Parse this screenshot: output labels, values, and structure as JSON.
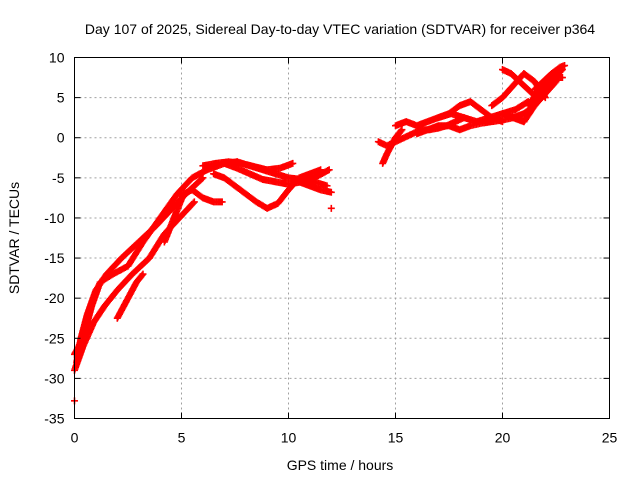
{
  "chart_data": {
    "type": "scatter",
    "title": "Day 107 of 2025, Sidereal Day-to-day VTEC variation (SDTVAR) for receiver p364",
    "xlabel": "GPS time / hours",
    "ylabel": "SDTVAR / TECUs",
    "xlim": [
      0,
      25
    ],
    "ylim": [
      -35,
      10
    ],
    "xticks": [
      "0",
      "5",
      "10",
      "15",
      "20",
      "25"
    ],
    "yticks": [
      "10",
      "5",
      "0",
      "-5",
      "-10",
      "-15",
      "-20",
      "-25",
      "-30",
      "-35"
    ],
    "grid": true,
    "marker": "+",
    "series_color": "#ff0000",
    "series": [
      {
        "x": [
          0.0,
          0.2,
          0.5,
          0.8,
          1.2,
          1.8,
          2.5,
          3.2,
          4.0,
          4.8,
          5.5,
          6.2,
          7.0,
          7.6
        ],
        "y": [
          -27,
          -26,
          -24,
          -21,
          -18,
          -17,
          -16,
          -13,
          -10,
          -7,
          -5,
          -4,
          -3.2,
          -3
        ]
      },
      {
        "x": [
          0.1,
          0.3,
          0.6,
          1.0,
          1.5,
          2.2,
          3.0,
          3.8,
          4.5,
          5.2,
          6.0
        ],
        "y": [
          -28,
          -25,
          -22,
          -19,
          -17,
          -15,
          -13,
          -11,
          -9,
          -7,
          -5
        ]
      },
      {
        "x": [
          0.0,
          0.4,
          0.9,
          1.4,
          2.0,
          2.7,
          3.5,
          4.2,
          4.9,
          5.6
        ],
        "y": [
          -29,
          -26,
          -23,
          -21,
          -19,
          -17,
          -15,
          -12,
          -10,
          -8
        ]
      },
      {
        "x": [
          2.0,
          2.3,
          2.6,
          2.9,
          3.2
        ],
        "y": [
          -22.5,
          -21,
          -19.5,
          -18,
          -17
        ]
      },
      {
        "x": [
          4.2,
          4.5,
          4.8,
          5.1,
          5.5,
          6.0,
          6.5,
          6.9
        ],
        "y": [
          -13,
          -11,
          -9,
          -7,
          -6.5,
          -7.5,
          -8,
          -8
        ]
      },
      {
        "x": [
          7.6,
          8.2,
          8.8,
          9.4,
          10.0,
          10.6,
          11.2,
          11.8
        ],
        "y": [
          -3,
          -3.5,
          -4,
          -4.5,
          -5,
          -5.2,
          -5.5,
          -6
        ]
      },
      {
        "x": [
          7.0,
          7.6,
          8.2,
          8.8,
          9.4,
          10.0,
          10.6,
          11.2,
          11.9
        ],
        "y": [
          -3.2,
          -3.8,
          -4.5,
          -5.2,
          -5.5,
          -5.8,
          -5.5,
          -5,
          -4
        ]
      },
      {
        "x": [
          6.5,
          7.0,
          7.5,
          8.0,
          8.5,
          9.0,
          9.5,
          10.0,
          10.5,
          11.0,
          11.5
        ],
        "y": [
          -4.5,
          -5,
          -6,
          -7,
          -8,
          -8.8,
          -8.2,
          -6.5,
          -5,
          -4.5,
          -4
        ]
      },
      {
        "x": [
          6.0,
          6.6,
          7.2,
          7.8,
          8.4,
          9.0,
          9.6,
          10.2
        ],
        "y": [
          -3.5,
          -3.2,
          -3,
          -3.2,
          -3.6,
          -4,
          -3.8,
          -3.2
        ]
      },
      {
        "x": [
          10.5,
          11.0,
          11.5,
          12.0
        ],
        "y": [
          -5.5,
          -6,
          -6.5,
          -6.8
        ]
      },
      {
        "x": [
          0.0
        ],
        "y": [
          -32.8
        ]
      },
      {
        "x": [
          12.0
        ],
        "y": [
          -8.8
        ]
      },
      {
        "x": [
          14.2,
          14.6,
          15.0,
          15.4,
          15.8,
          16.2,
          16.6,
          17.0,
          17.4,
          17.8,
          18.2
        ],
        "y": [
          -0.5,
          -1,
          -0.5,
          0,
          0.5,
          1,
          1,
          1.2,
          1.5,
          2,
          2.5
        ]
      },
      {
        "x": [
          14.4,
          14.6,
          14.8,
          15.0,
          15.3
        ],
        "y": [
          -3.2,
          -2,
          -1,
          0,
          1
        ]
      },
      {
        "x": [
          15.0,
          15.5,
          16.0,
          16.5,
          17.0,
          17.5,
          18.0,
          18.5,
          19.0,
          19.5,
          20.0
        ],
        "y": [
          1.5,
          2,
          1.5,
          2,
          2.5,
          3,
          4,
          4.5,
          3.5,
          2.5,
          2
        ]
      },
      {
        "x": [
          16.0,
          16.5,
          17.0,
          17.5,
          18.0,
          18.5,
          19.0,
          19.5,
          20.0,
          20.5,
          21.0
        ],
        "y": [
          0.5,
          1,
          1.5,
          1.5,
          1,
          1.5,
          1.8,
          2,
          2.2,
          2.5,
          2
        ]
      },
      {
        "x": [
          17.0,
          17.6,
          18.2,
          18.8,
          19.4,
          20.0,
          20.6,
          21.2
        ],
        "y": [
          2.5,
          3,
          2.5,
          2,
          2.5,
          3,
          3.5,
          4.5
        ]
      },
      {
        "x": [
          19.5,
          20.0,
          20.5,
          21.0,
          21.5,
          22.0
        ],
        "y": [
          4,
          5,
          6.5,
          8,
          7,
          5
        ]
      },
      {
        "x": [
          20.0,
          20.4,
          20.8,
          21.2,
          21.6
        ],
        "y": [
          8.5,
          8,
          7,
          6,
          5
        ]
      },
      {
        "x": [
          21.2,
          21.6,
          22.0,
          22.4,
          22.8
        ],
        "y": [
          4,
          5.5,
          6.5,
          7.5,
          8.5
        ]
      },
      {
        "x": [
          21.5,
          21.9,
          22.3,
          22.7,
          22.9
        ],
        "y": [
          6,
          7,
          8,
          8.8,
          9
        ]
      },
      {
        "x": [
          20.5,
          21.0,
          21.5,
          22.0,
          22.5
        ],
        "y": [
          2.5,
          3,
          4,
          5.5,
          7
        ]
      },
      {
        "x": [
          20.0,
          20.5,
          21.0,
          21.5,
          22.0,
          22.5,
          22.8
        ],
        "y": [
          3,
          2.5,
          2,
          4,
          6,
          7.5,
          7.5
        ]
      }
    ]
  }
}
